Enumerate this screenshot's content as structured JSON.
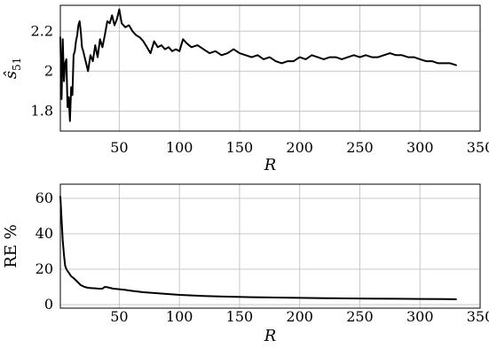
{
  "chart_data": [
    {
      "type": "line",
      "xlabel": "R",
      "ylabel_main": "ŝ",
      "ylabel_sub": "51",
      "xlim": [
        1,
        350
      ],
      "ylim": [
        1.7,
        2.33
      ],
      "xticks": [
        50,
        100,
        150,
        200,
        250,
        300,
        350
      ],
      "yticks": [
        1.8,
        2,
        2.2
      ],
      "ytick_labels": [
        "1.8",
        "2",
        "2.2"
      ],
      "grid": true,
      "series": [
        {
          "x": [
            1,
            2,
            3,
            4,
            5,
            6,
            7,
            8,
            9,
            10,
            11,
            12,
            13,
            14,
            15,
            16,
            17,
            18,
            19,
            20,
            22,
            24,
            26,
            28,
            30,
            32,
            34,
            36,
            38,
            40,
            42,
            44,
            46,
            48,
            50,
            52,
            55,
            58,
            61,
            64,
            67,
            70,
            73,
            76,
            79,
            82,
            85,
            88,
            91,
            94,
            97,
            100,
            103,
            106,
            110,
            115,
            120,
            125,
            130,
            135,
            140,
            145,
            150,
            155,
            160,
            165,
            170,
            175,
            180,
            185,
            190,
            195,
            200,
            205,
            210,
            215,
            220,
            225,
            230,
            235,
            240,
            245,
            250,
            255,
            260,
            265,
            270,
            275,
            280,
            285,
            290,
            295,
            300,
            305,
            310,
            315,
            320,
            325,
            330
          ],
          "y": [
            2.17,
            1.86,
            2.16,
            1.95,
            2.04,
            2.06,
            1.82,
            1.87,
            1.75,
            1.92,
            1.88,
            2.08,
            2.1,
            2.15,
            2.18,
            2.23,
            2.25,
            2.2,
            2.12,
            2.1,
            2.05,
            2.0,
            2.08,
            2.05,
            2.13,
            2.07,
            2.16,
            2.12,
            2.18,
            2.25,
            2.24,
            2.28,
            2.23,
            2.26,
            2.31,
            2.24,
            2.22,
            2.23,
            2.2,
            2.18,
            2.17,
            2.15,
            2.12,
            2.09,
            2.15,
            2.12,
            2.13,
            2.11,
            2.12,
            2.1,
            2.11,
            2.1,
            2.16,
            2.14,
            2.12,
            2.13,
            2.11,
            2.09,
            2.1,
            2.08,
            2.09,
            2.11,
            2.09,
            2.08,
            2.07,
            2.08,
            2.06,
            2.07,
            2.05,
            2.04,
            2.05,
            2.05,
            2.07,
            2.06,
            2.08,
            2.07,
            2.06,
            2.07,
            2.07,
            2.06,
            2.07,
            2.08,
            2.07,
            2.08,
            2.07,
            2.07,
            2.08,
            2.09,
            2.08,
            2.08,
            2.07,
            2.07,
            2.06,
            2.05,
            2.05,
            2.04,
            2.04,
            2.04,
            2.03
          ]
        }
      ]
    },
    {
      "type": "line",
      "xlabel": "R",
      "ylabel": "RE %",
      "xlim": [
        1,
        350
      ],
      "ylim": [
        -2,
        68
      ],
      "xticks": [
        50,
        100,
        150,
        200,
        250,
        300,
        350
      ],
      "yticks": [
        0,
        20,
        40,
        60
      ],
      "ytick_labels": [
        "0",
        "20",
        "40",
        "60"
      ],
      "grid": true,
      "series": [
        {
          "x": [
            1,
            2,
            3,
            4,
            5,
            6,
            8,
            10,
            12,
            15,
            18,
            21,
            24,
            27,
            30,
            33,
            36,
            38,
            40,
            45,
            50,
            55,
            60,
            70,
            80,
            90,
            100,
            120,
            140,
            160,
            180,
            200,
            220,
            240,
            260,
            280,
            300,
            320,
            330
          ],
          "y": [
            61,
            48,
            36,
            28,
            22,
            20,
            18,
            16,
            15,
            13,
            11,
            10,
            9.5,
            9.3,
            9.2,
            9.0,
            9.0,
            10,
            9.8,
            9.0,
            8.7,
            8.3,
            7.8,
            7.0,
            6.5,
            6.0,
            5.5,
            4.9,
            4.5,
            4.2,
            4.0,
            3.8,
            3.6,
            3.5,
            3.4,
            3.3,
            3.2,
            3.1,
            3.0
          ]
        }
      ]
    }
  ]
}
